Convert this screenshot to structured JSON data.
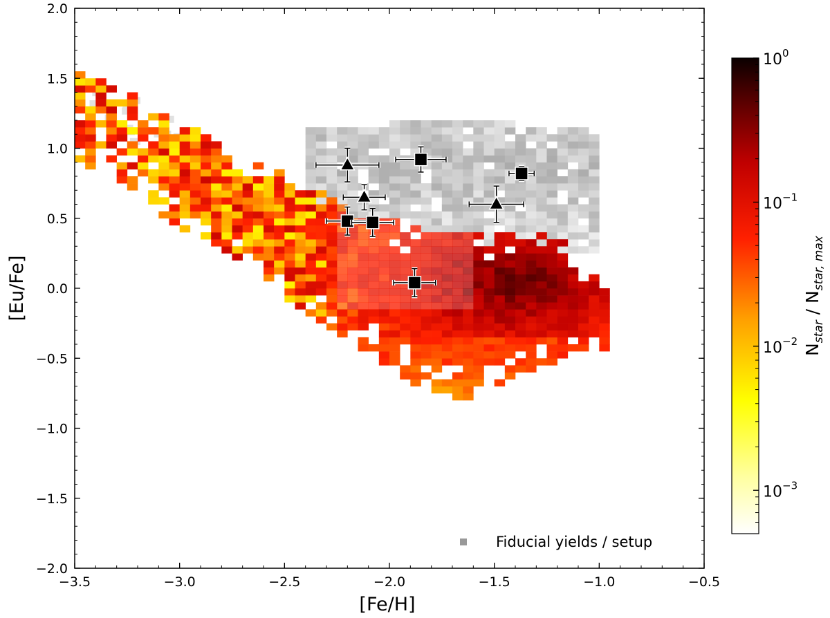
{
  "chart_data": {
    "type": "heatmap",
    "xlabel": "[Fe/H]",
    "ylabel": "[Eu/Fe]",
    "xlim": [
      -3.5,
      -0.5
    ],
    "ylim": [
      -2.0,
      2.0
    ],
    "x_ticks": [
      -3.5,
      -3.0,
      -2.5,
      -2.0,
      -1.5,
      -1.0,
      -0.5
    ],
    "x_tick_labels": [
      "−3.5",
      "−3.0",
      "−2.5",
      "−2.0",
      "−1.5",
      "−1.0",
      "−0.5"
    ],
    "y_ticks": [
      -2.0,
      -1.5,
      -1.0,
      -0.5,
      0.0,
      0.5,
      1.0,
      1.5,
      2.0
    ],
    "y_tick_labels": [
      "−2.0",
      "−1.5",
      "−1.0",
      "−0.5",
      "0.0",
      "0.5",
      "1.0",
      "1.5",
      "2.0"
    ],
    "bin_size": 0.05,
    "colorbar": {
      "label": "N_star / N_star,max",
      "label_main": "N",
      "label_sub1": "star",
      "label_mid": " / N",
      "label_sub2": "star, max",
      "scale": "log",
      "range": [
        0.0005,
        1.0
      ],
      "colormap": "hot_r",
      "ticks": [
        {
          "base": "10",
          "exp": "0",
          "value": 1.0
        },
        {
          "base": "10",
          "exp": "−1",
          "value": 0.1
        },
        {
          "base": "10",
          "exp": "−2",
          "value": 0.01
        },
        {
          "base": "10",
          "exp": "−3",
          "value": 0.001
        }
      ]
    },
    "model_grey": {
      "name": "Fiducial yields / setup",
      "color": "#999999",
      "region": "grey cloud, [Fe/H] -2.4 to -1.05, [Eu/Fe] 0.3 to 1.2"
    },
    "model_main": {
      "region": "coloured diagonal band from ([Fe/H] -3.5, [Eu/Fe] 1.5) down to ([Fe/H] -1.0, [Eu/Fe] -0.9), densest near (-1.4, 0.0)"
    },
    "observations": [
      {
        "marker": "triangle",
        "x": -2.2,
        "y": 0.88,
        "xerr": 0.15,
        "yerr": 0.12
      },
      {
        "marker": "square",
        "x": -1.85,
        "y": 0.92,
        "xerr": 0.12,
        "yerr": 0.09
      },
      {
        "marker": "square",
        "x": -1.37,
        "y": 0.82,
        "xerr": 0.06,
        "yerr": 0.05
      },
      {
        "marker": "triangle",
        "x": -2.12,
        "y": 0.65,
        "xerr": 0.1,
        "yerr": 0.09
      },
      {
        "marker": "triangle",
        "x": -1.49,
        "y": 0.6,
        "xerr": 0.13,
        "yerr": 0.13
      },
      {
        "marker": "square",
        "x": -2.2,
        "y": 0.48,
        "xerr": 0.1,
        "yerr": 0.1
      },
      {
        "marker": "square",
        "x": -2.08,
        "y": 0.47,
        "xerr": 0.1,
        "yerr": 0.1
      },
      {
        "marker": "square",
        "x": -1.88,
        "y": 0.04,
        "xerr": 0.1,
        "yerr": 0.1
      }
    ],
    "legend": {
      "label": "Fiducial yields / setup",
      "position": "lower right"
    },
    "grid": false
  }
}
